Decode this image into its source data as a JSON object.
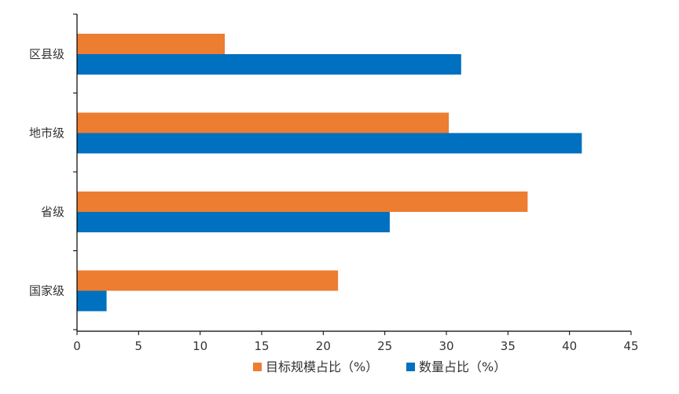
{
  "chart_data": {
    "type": "bar",
    "orientation": "horizontal",
    "categories": [
      "区县级",
      "地市级",
      "省级",
      "国家级"
    ],
    "series": [
      {
        "name": "目标规模占比（%）",
        "color": "#ED7D31",
        "values": [
          12.0,
          30.2,
          36.6,
          21.2
        ]
      },
      {
        "name": "数量占比（%）",
        "color": "#0070C0",
        "values": [
          31.2,
          41.0,
          25.4,
          2.4
        ]
      }
    ],
    "x_ticks": [
      "0",
      "5",
      "10",
      "15",
      "20",
      "25",
      "30",
      "35",
      "40",
      "45"
    ],
    "xlim": [
      0,
      45
    ],
    "grid": false,
    "legend_position": "bottom"
  }
}
